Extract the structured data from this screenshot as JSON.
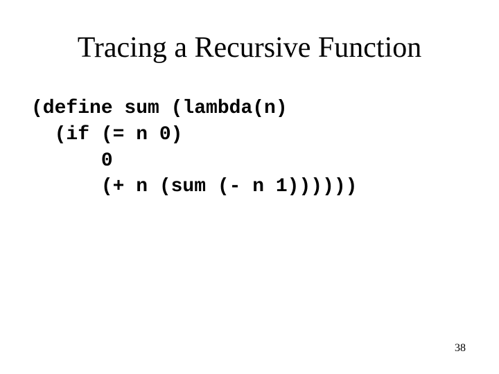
{
  "slide": {
    "title": "Tracing a Recursive Function",
    "code": {
      "line1": "(define sum (lambda(n)",
      "line2": "  (if (= n 0)",
      "line3": "      0",
      "line4": "      (+ n (sum (- n 1))))))"
    },
    "page_number": "38"
  },
  "styling": {
    "background_color": "#ffffff",
    "title_font": "Times New Roman",
    "title_fontsize": 42,
    "title_color": "#000000",
    "code_font": "Courier New",
    "code_fontsize": 28,
    "code_fontweight": "bold",
    "code_color": "#000000",
    "page_number_fontsize": 16,
    "page_number_color": "#000000",
    "slide_width": 720,
    "slide_height": 540
  }
}
